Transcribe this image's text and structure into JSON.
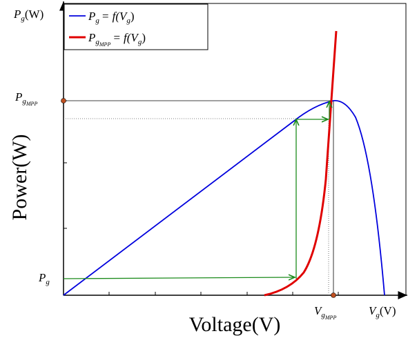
{
  "axes": {
    "y_corner": {
      "symbol": "P",
      "sub": "g",
      "unit": "(W)"
    },
    "x_corner": {
      "symbol": "V",
      "sub": "g",
      "unit": "(V)"
    },
    "y_label": "Power(W)",
    "x_label": "Voltage(V)"
  },
  "legend": [
    {
      "lhs": "P",
      "sub": "g",
      "rhs": "= f(V",
      "rhs_sub": "g",
      "close": ")"
    },
    {
      "lhs": "P",
      "sub": "g",
      "subsub": "MPP",
      "rhs": "= f(V",
      "rhs_sub": "g",
      "close": ")"
    }
  ],
  "markers": {
    "p_mpp": {
      "symbol": "P",
      "sub": "g",
      "subsub": "MPP"
    },
    "p_g": {
      "symbol": "P",
      "sub": "g"
    },
    "v_mpp": {
      "symbol": "V",
      "sub": "g",
      "subsub": "MPP"
    }
  }
}
